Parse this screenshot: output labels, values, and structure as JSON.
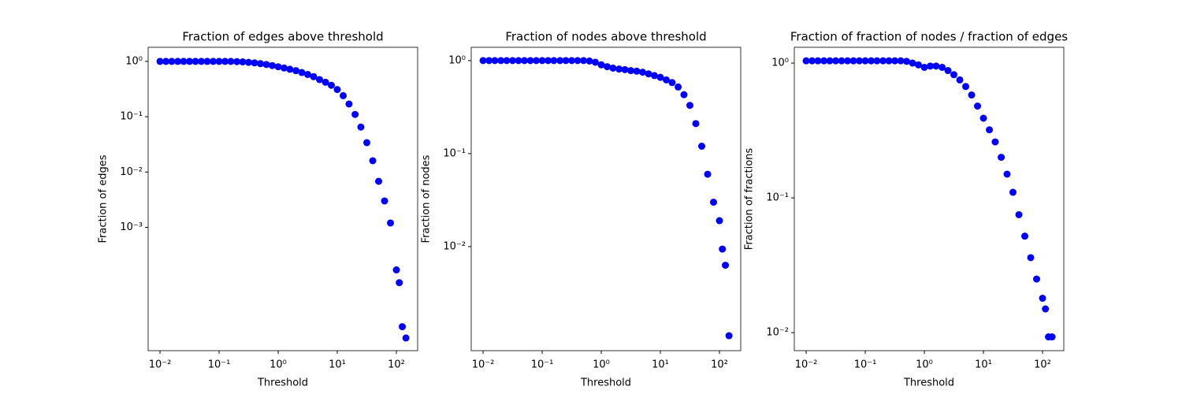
{
  "chart_data": [
    {
      "type": "scatter",
      "title": "Fraction of edges above threshold",
      "x_label": "Threshold",
      "y_label": "Fraction of edges",
      "xscale": "log",
      "yscale": "log",
      "color": "#0000ff",
      "x": [
        0.01,
        0.0126,
        0.0158,
        0.02,
        0.0251,
        0.0316,
        0.0398,
        0.0501,
        0.0631,
        0.0794,
        0.1,
        0.126,
        0.158,
        0.2,
        0.251,
        0.316,
        0.398,
        0.501,
        0.631,
        0.794,
        1,
        1.26,
        1.58,
        2,
        2.51,
        3.16,
        3.98,
        5.01,
        6.31,
        7.94,
        10,
        12.6,
        15.8,
        20,
        25.1,
        31.6,
        39.8,
        50.1,
        63.1,
        79.4,
        100,
        112,
        126,
        145
      ],
      "values": [
        1,
        1,
        1,
        1,
        1,
        1,
        1,
        1,
        1,
        1,
        1,
        1,
        1,
        0.99,
        0.98,
        0.96,
        0.94,
        0.91,
        0.88,
        0.84,
        0.8,
        0.76,
        0.72,
        0.68,
        0.63,
        0.58,
        0.53,
        0.47,
        0.42,
        0.37,
        0.31,
        0.24,
        0.17,
        0.11,
        0.065,
        0.034,
        0.016,
        0.0068,
        0.003,
        0.0012,
        0.00017,
        0.0001,
        1.6e-05,
        1e-05
      ],
      "xlim": [
        0.0063,
        229
      ],
      "ylim": [
        5.9e-06,
        1.8
      ],
      "xticks": [
        {
          "value": 0.01,
          "label": "10⁻²"
        },
        {
          "value": 0.1,
          "label": "10⁻¹"
        },
        {
          "value": 1,
          "label": "10⁰"
        },
        {
          "value": 10,
          "label": "10¹"
        },
        {
          "value": 100,
          "label": "10²"
        }
      ],
      "yticks": [
        {
          "value": 1,
          "label": "10⁰"
        },
        {
          "value": 0.1,
          "label": "10⁻¹"
        },
        {
          "value": 0.01,
          "label": "10⁻²"
        },
        {
          "value": 0.001,
          "label": "10⁻³"
        }
      ]
    },
    {
      "type": "scatter",
      "title": "Fraction of nodes above threshold",
      "x_label": "Threshold",
      "y_label": "Fraction of nodes",
      "xscale": "log",
      "yscale": "log",
      "color": "#0000ff",
      "x": [
        0.01,
        0.0126,
        0.0158,
        0.02,
        0.0251,
        0.0316,
        0.0398,
        0.0501,
        0.0631,
        0.0794,
        0.1,
        0.126,
        0.158,
        0.2,
        0.251,
        0.316,
        0.398,
        0.501,
        0.631,
        0.794,
        1,
        1.26,
        1.58,
        2,
        2.51,
        3.16,
        3.98,
        5.01,
        6.31,
        7.94,
        10,
        12.6,
        15.8,
        20,
        25.1,
        31.6,
        39.8,
        50.1,
        63.1,
        79.4,
        100,
        112,
        126,
        145
      ],
      "values": [
        1,
        1,
        1,
        1,
        1,
        1,
        1,
        1,
        1,
        1,
        1,
        1,
        1,
        1,
        1,
        1,
        1,
        1,
        0.99,
        0.96,
        0.9,
        0.86,
        0.83,
        0.81,
        0.8,
        0.78,
        0.77,
        0.75,
        0.72,
        0.69,
        0.66,
        0.62,
        0.58,
        0.52,
        0.43,
        0.33,
        0.21,
        0.12,
        0.06,
        0.03,
        0.019,
        0.0094,
        0.0063,
        0.0011
      ],
      "xlim": [
        0.0063,
        229
      ],
      "ylim": [
        0.00076,
        1.39
      ],
      "xticks": [
        {
          "value": 0.01,
          "label": "10⁻²"
        },
        {
          "value": 0.1,
          "label": "10⁻¹"
        },
        {
          "value": 1,
          "label": "10⁰"
        },
        {
          "value": 10,
          "label": "10¹"
        },
        {
          "value": 100,
          "label": "10²"
        }
      ],
      "yticks": [
        {
          "value": 1,
          "label": "10⁰"
        },
        {
          "value": 0.1,
          "label": "10⁻¹"
        },
        {
          "value": 0.01,
          "label": "10⁻²"
        }
      ]
    },
    {
      "type": "scatter",
      "title": "Fraction of fraction of nodes / fraction of edges",
      "x_label": "Threshold",
      "y_label": "Fraction of fractions",
      "xscale": "log",
      "yscale": "log",
      "color": "#0000ff",
      "x": [
        0.01,
        0.0126,
        0.0158,
        0.02,
        0.0251,
        0.0316,
        0.0398,
        0.0501,
        0.0631,
        0.0794,
        0.1,
        0.126,
        0.158,
        0.2,
        0.251,
        0.316,
        0.398,
        0.501,
        0.631,
        0.794,
        1,
        1.26,
        1.58,
        2,
        2.51,
        3.16,
        3.98,
        5.01,
        6.31,
        7.94,
        10,
        12.6,
        15.8,
        20,
        25.1,
        31.6,
        39.8,
        50.1,
        63.1,
        79.4,
        100,
        112,
        126,
        145
      ],
      "values": [
        1.04,
        1.04,
        1.04,
        1.04,
        1.04,
        1.04,
        1.04,
        1.04,
        1.04,
        1.04,
        1.04,
        1.04,
        1.04,
        1.04,
        1.04,
        1.04,
        1.04,
        1.03,
        1,
        0.97,
        0.93,
        0.95,
        0.95,
        0.93,
        0.88,
        0.82,
        0.75,
        0.67,
        0.58,
        0.48,
        0.39,
        0.32,
        0.26,
        0.2,
        0.15,
        0.11,
        0.075,
        0.052,
        0.036,
        0.025,
        0.018,
        0.015,
        0.0093,
        0.0093
      ],
      "xlim": [
        0.0063,
        229
      ],
      "ylim": [
        0.00735,
        1.31
      ],
      "xticks": [
        {
          "value": 0.01,
          "label": "10⁻²"
        },
        {
          "value": 0.1,
          "label": "10⁻¹"
        },
        {
          "value": 1,
          "label": "10⁰"
        },
        {
          "value": 10,
          "label": "10¹"
        },
        {
          "value": 100,
          "label": "10²"
        }
      ],
      "yticks": [
        {
          "value": 1,
          "label": "10⁰"
        },
        {
          "value": 0.1,
          "label": "10⁻¹"
        },
        {
          "value": 0.01,
          "label": "10⁻²"
        }
      ]
    }
  ]
}
